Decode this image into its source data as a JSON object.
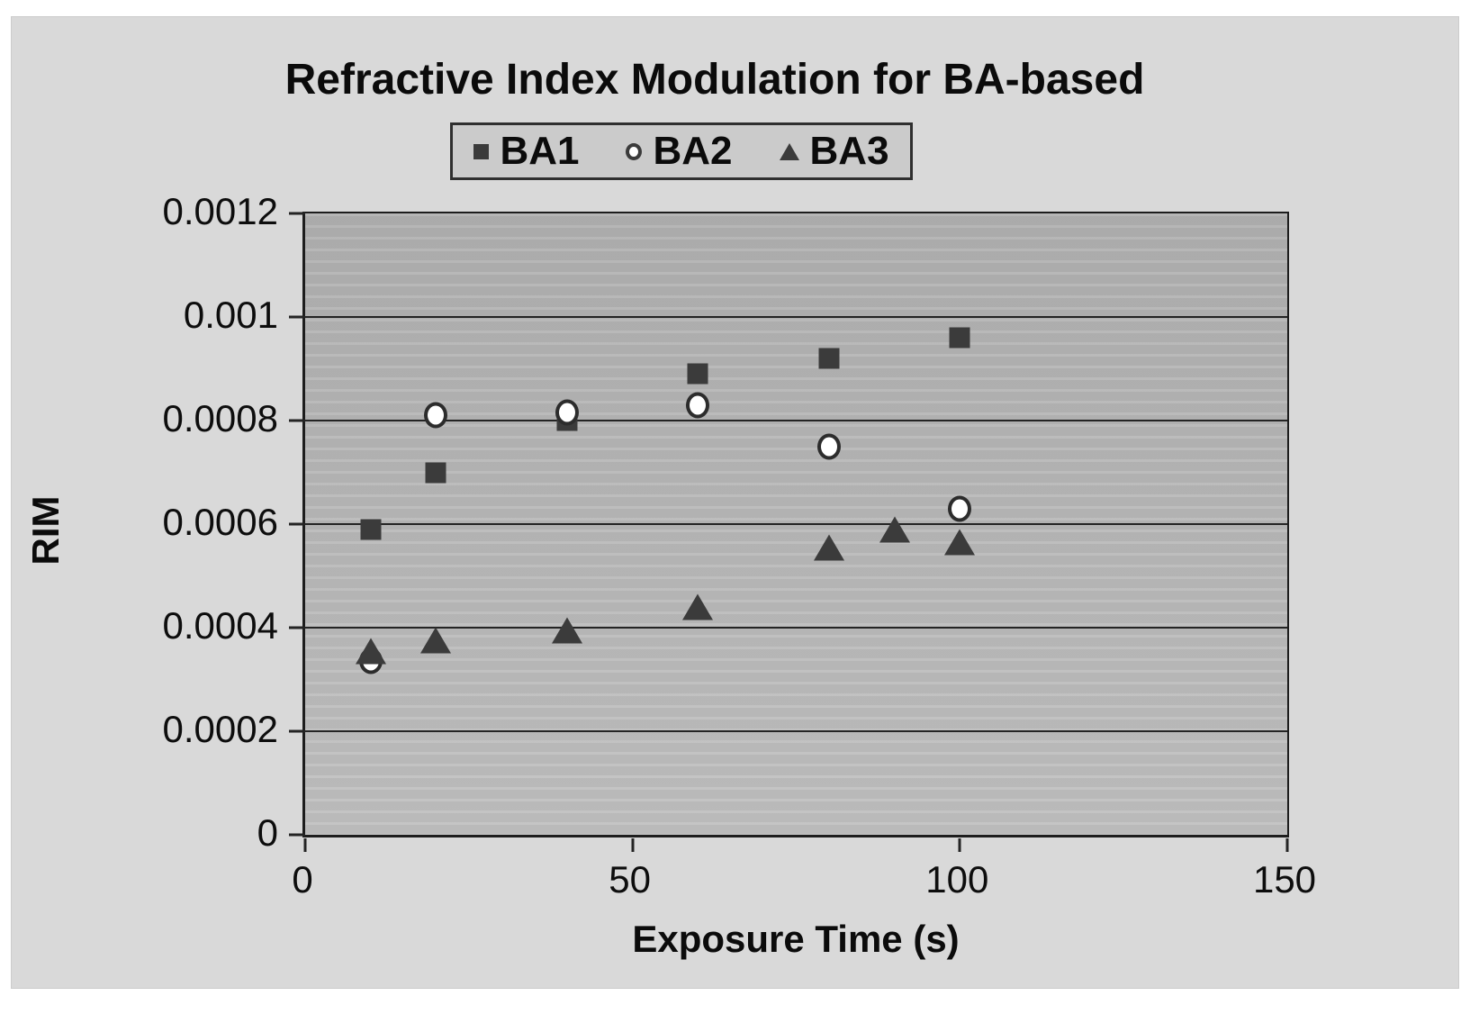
{
  "title": "Refractive Index Modulation for BA-based",
  "legend": {
    "items": [
      {
        "label": "BA1",
        "marker": "square"
      },
      {
        "label": "BA2",
        "marker": "circle"
      },
      {
        "label": "BA3",
        "marker": "triangle"
      }
    ]
  },
  "colors": {
    "panel_bg": "#d9d9d9",
    "plot_bg": "#b8b8b8",
    "legend_bg": "#cbcbcb",
    "marker": "#3b3b3b",
    "grid": "#242424",
    "text": "#0b0b0b"
  },
  "chart_data": {
    "type": "scatter",
    "title": "Refractive Index Modulation for BA-based",
    "xlabel": "Exposure Time (s)",
    "ylabel": "RIM",
    "xlim": [
      0,
      150
    ],
    "ylim": [
      0,
      0.0012
    ],
    "grid": "horizontal",
    "legend_position": "top-center",
    "x_ticks": [
      0,
      50,
      100,
      150
    ],
    "x_tick_labels": [
      "0",
      "50",
      "100",
      "150"
    ],
    "y_ticks": [
      0,
      0.0002,
      0.0004,
      0.0006,
      0.0008,
      0.001,
      0.0012
    ],
    "y_tick_labels": [
      "0",
      "0.0002",
      "0.0004",
      "0.0006",
      "0.0008",
      "0.001",
      "0.0012"
    ],
    "series": [
      {
        "name": "BA1",
        "marker": "square",
        "points": [
          [
            10,
            0.00059
          ],
          [
            20,
            0.0007
          ],
          [
            40,
            0.0008
          ],
          [
            60,
            0.00089
          ],
          [
            80,
            0.00092
          ],
          [
            100,
            0.00096
          ]
        ]
      },
      {
        "name": "BA2",
        "marker": "circle",
        "points": [
          [
            10,
            0.000335
          ],
          [
            20,
            0.00081
          ],
          [
            40,
            0.000815
          ],
          [
            60,
            0.00083
          ],
          [
            80,
            0.00075
          ],
          [
            100,
            0.00063
          ]
        ]
      },
      {
        "name": "BA3",
        "marker": "triangle",
        "points": [
          [
            10,
            0.000355
          ],
          [
            20,
            0.000375
          ],
          [
            40,
            0.000395
          ],
          [
            60,
            0.00044
          ],
          [
            80,
            0.000555
          ],
          [
            90,
            0.00059
          ],
          [
            100,
            0.000565
          ]
        ]
      }
    ]
  }
}
